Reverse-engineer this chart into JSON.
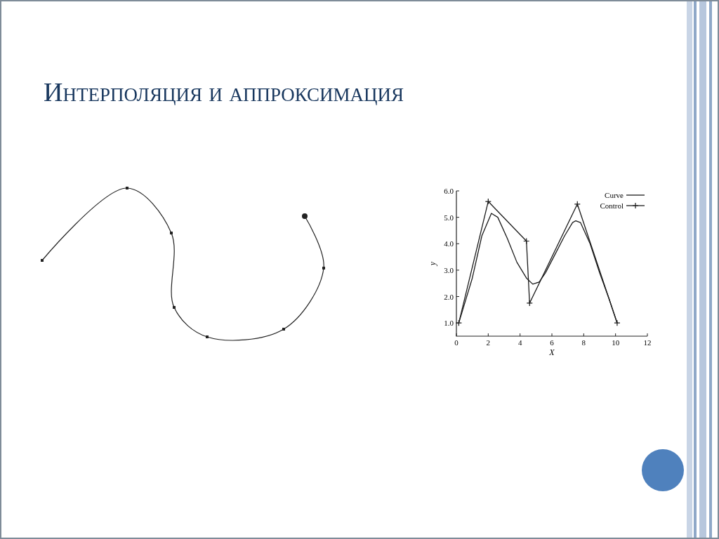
{
  "chart_data": {
    "type": "line",
    "title": "Интерполяция и аппроксимация",
    "xlabel": "X",
    "ylabel": "y",
    "xlim": [
      0,
      12
    ],
    "ylim": [
      0.5,
      6
    ],
    "xticks": [
      0,
      2,
      4,
      6,
      8,
      10,
      12
    ],
    "yticks": [
      {
        "value": 1,
        "label": "1.0"
      },
      {
        "value": 2,
        "label": "2.0"
      },
      {
        "value": 3,
        "label": "3.0"
      },
      {
        "value": 4,
        "label": "4.0"
      },
      {
        "value": 5,
        "label": "5.0"
      },
      {
        "value": 6,
        "label": "6.0"
      }
    ],
    "grid": false,
    "legend": "top right",
    "series": [
      {
        "name": "Curve",
        "color": "#1a1a1a",
        "marker": "none",
        "x": [
          0.15,
          1.0,
          1.6,
          2.2,
          2.6,
          3.2,
          3.8,
          4.4,
          4.8,
          5.2,
          5.6,
          6.2,
          6.8,
          7.3,
          7.5,
          7.8,
          8.4,
          9.0,
          9.6,
          10.1
        ],
        "values": [
          1.0,
          2.7,
          4.3,
          5.15,
          5.0,
          4.2,
          3.3,
          2.7,
          2.47,
          2.55,
          2.9,
          3.6,
          4.3,
          4.8,
          4.87,
          4.8,
          4.0,
          2.9,
          1.9,
          1.0
        ]
      },
      {
        "name": "Control",
        "color": "#1a1a1a",
        "marker": "cross",
        "x": [
          0.15,
          2.0,
          4.4,
          4.6,
          7.6,
          10.1
        ],
        "values": [
          1.0,
          5.6,
          4.1,
          1.75,
          5.5,
          1.0
        ]
      }
    ]
  }
}
